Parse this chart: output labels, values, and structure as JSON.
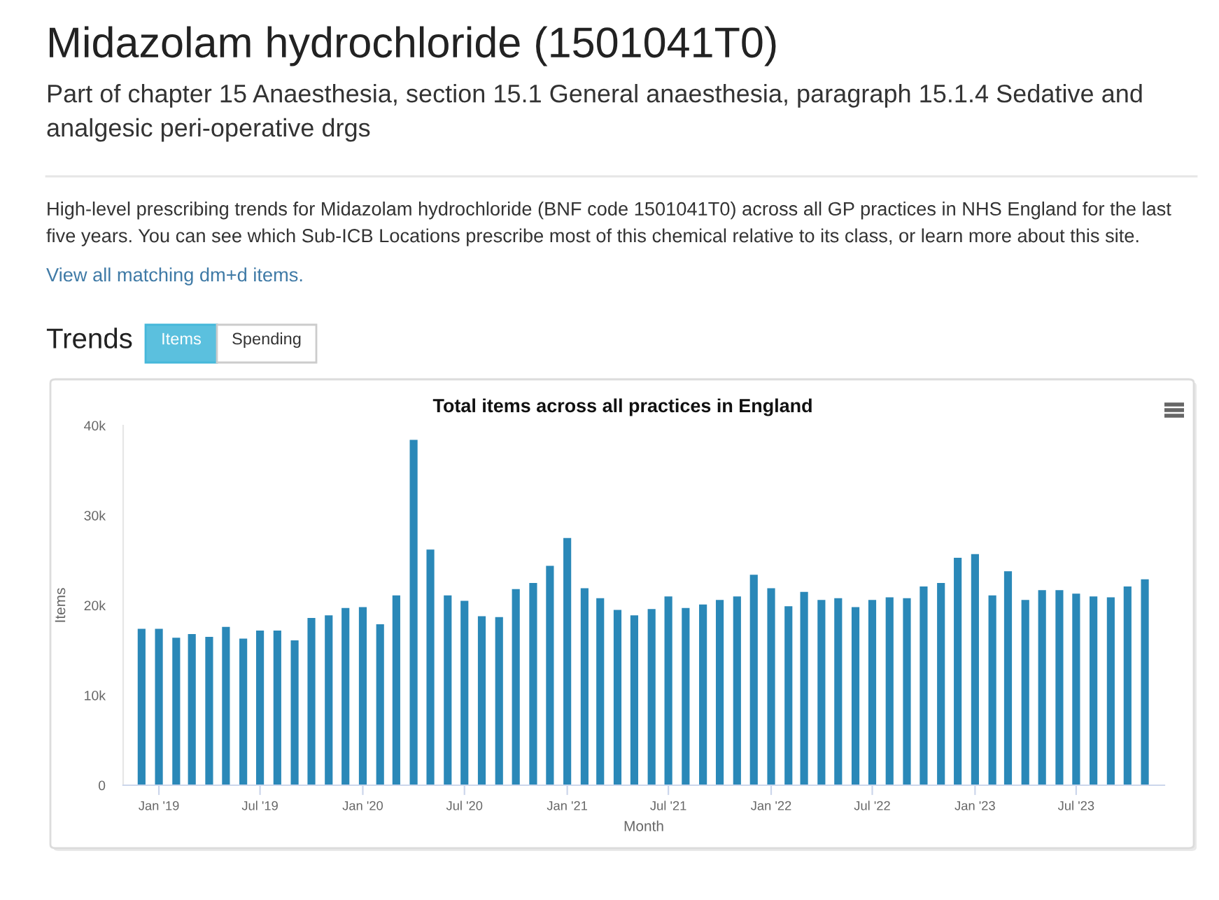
{
  "chart_data": {
    "type": "bar",
    "title": "Total items across all practices in England",
    "xlabel": "Month",
    "ylabel": "Items",
    "x": [
      "2018-12",
      "2019-01",
      "2019-02",
      "2019-03",
      "2019-04",
      "2019-05",
      "2019-06",
      "2019-07",
      "2019-08",
      "2019-09",
      "2019-10",
      "2019-11",
      "2019-12",
      "2020-01",
      "2020-02",
      "2020-03",
      "2020-04",
      "2020-05",
      "2020-06",
      "2020-07",
      "2020-08",
      "2020-09",
      "2020-10",
      "2020-11",
      "2020-12",
      "2021-01",
      "2021-02",
      "2021-03",
      "2021-04",
      "2021-05",
      "2021-06",
      "2021-07",
      "2021-08",
      "2021-09",
      "2021-10",
      "2021-11",
      "2021-12",
      "2022-01",
      "2022-02",
      "2022-03",
      "2022-04",
      "2022-05",
      "2022-06",
      "2022-07",
      "2022-08",
      "2022-09",
      "2022-10",
      "2022-11",
      "2022-12",
      "2023-01",
      "2023-02",
      "2023-03",
      "2023-04",
      "2023-05",
      "2023-06",
      "2023-07",
      "2023-08",
      "2023-09",
      "2023-10",
      "2023-11"
    ],
    "values": [
      17400,
      17400,
      16400,
      16800,
      16500,
      17600,
      16300,
      17200,
      17200,
      16100,
      18600,
      18900,
      19700,
      19800,
      17900,
      21100,
      38400,
      26200,
      21100,
      20500,
      18800,
      18700,
      21800,
      22500,
      24400,
      27500,
      21900,
      20800,
      19500,
      18900,
      19600,
      21000,
      19700,
      20100,
      20600,
      21000,
      23400,
      21900,
      19900,
      21500,
      20600,
      20800,
      19800,
      20600,
      20900,
      20800,
      22100,
      22500,
      25300,
      25700,
      21100,
      23800,
      20600,
      21700,
      21700,
      21300,
      21000,
      20900,
      22100,
      22900
    ],
    "color": "#2a88b8",
    "xlim": [
      "2018-10-29",
      "2023-12-06"
    ],
    "xticks": [
      {
        "value": "2019-01",
        "label": "Jan '19"
      },
      {
        "value": "2019-07",
        "label": "Jul '19"
      },
      {
        "value": "2020-01",
        "label": "Jan '20"
      },
      {
        "value": "2020-07",
        "label": "Jul '20"
      },
      {
        "value": "2021-01",
        "label": "Jan '21"
      },
      {
        "value": "2021-07",
        "label": "Jul '21"
      },
      {
        "value": "2022-01",
        "label": "Jan '22"
      },
      {
        "value": "2022-07",
        "label": "Jul '22"
      },
      {
        "value": "2023-01",
        "label": "Jan '23"
      },
      {
        "value": "2023-07",
        "label": "Jul '23"
      }
    ],
    "ylim": [
      0,
      40000
    ],
    "yticks": [
      0,
      {
        "value": 10000,
        "label": "10k"
      },
      {
        "value": 20000,
        "label": "20k"
      },
      {
        "value": 30000,
        "label": "30k"
      },
      {
        "value": 40000,
        "label": "40k"
      }
    ],
    "annotations": [
      "Midazolam hydrochloride (1501041T0)",
      "Part of chapter 15 Anaesthesia, section 15.1 General anaesthesia, paragraph 15.1.4 Sedative and analgesic peri-operative drgs",
      "High-level prescribing trends for Midazolam hydrochloride (BNF code 1501041T0) across all GP practices in NHS England for the last five years. You can see which Sub-ICB Locations prescribe most of this chemical relative to its class, or learn more about this site.",
      "View all matching dm+d items.",
      "Trends",
      "Items",
      "Spending"
    ]
  }
}
